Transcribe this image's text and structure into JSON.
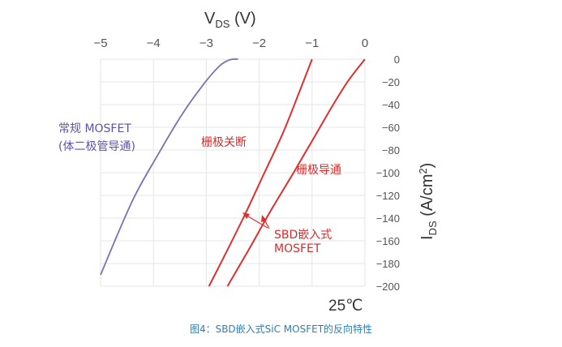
{
  "caption": "图4：SBD嵌入式SiC MOSFET的反向特性",
  "chart_data": {
    "type": "line",
    "title": "",
    "x_axis": {
      "label_main": "V",
      "label_sub": "DS",
      "label_unit": " (V)",
      "range": [
        -5,
        0
      ],
      "ticks": [
        -5,
        -4,
        -3,
        -2,
        -1,
        0
      ],
      "tick_labels": [
        "−5",
        "−4",
        "−3",
        "−2",
        "−1",
        "0"
      ],
      "position": "top"
    },
    "y_axis": {
      "label_main": "I",
      "label_sub": "DS",
      "label_unit": " (A/cm",
      "label_sup": "2",
      "label_close": ")",
      "range": [
        -200,
        0
      ],
      "ticks": [
        0,
        -20,
        -40,
        -60,
        -80,
        -100,
        -120,
        -140,
        -160,
        -180,
        -200
      ],
      "tick_labels": [
        "0",
        "−20",
        "−40",
        "−60",
        "−80",
        "−100",
        "−120",
        "−140",
        "−160",
        "−180",
        "−200"
      ],
      "position": "right"
    },
    "grid": true,
    "temperature_label": "25℃",
    "series": [
      {
        "color": "#7d6fb0",
        "x": [
          -2.4,
          -2.55,
          -2.75,
          -3.05,
          -3.45,
          -3.9,
          -4.4,
          -5.0
        ],
        "y": [
          0,
          -0.5,
          -6,
          -22,
          -48,
          -83,
          -125,
          -190
        ]
      },
      {
        "color": "#e02e2e",
        "x": [
          -1.0,
          -1.25,
          -1.55,
          -1.9,
          -2.25,
          -2.6,
          -2.95
        ],
        "y": [
          0,
          -30,
          -65,
          -100,
          -135,
          -168,
          -200
        ]
      },
      {
        "color": "#e02e2e",
        "x": [
          0.0,
          -0.3,
          -0.6,
          -0.95,
          -1.35,
          -1.8,
          -2.2,
          -2.6
        ],
        "y": [
          0,
          -18,
          -40,
          -68,
          -100,
          -135,
          -168,
          -200
        ]
      }
    ],
    "annotations": {
      "conventional_line1": "常规 MOSFET",
      "conventional_line2": "(体二极管导通)",
      "gate_off": "栅极关断",
      "gate_on": "栅极导通",
      "sbd_line1": "SBD嵌入式",
      "sbd_line2": "MOSFET"
    },
    "colors": {
      "purple": "#7d6fb0",
      "red": "#e02e2e",
      "grid": "#e6e6e6",
      "text": "#555555",
      "caption": "#2b7fb5"
    }
  }
}
